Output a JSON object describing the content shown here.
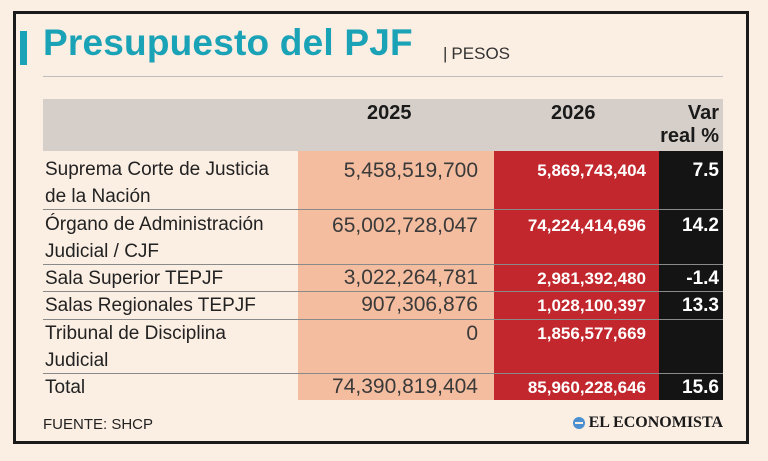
{
  "title": "Presupuesto del PJF",
  "subtitle_separator": "|",
  "subtitle": "PESOS",
  "headers": {
    "year1": "2025",
    "year2": "2026",
    "var_line1": "Var",
    "var_line2": "real %"
  },
  "rows": [
    {
      "label_line1": "Suprema Corte de Justicia",
      "label_line2": "de la Nación",
      "y2025": "5,458,519,700",
      "y2026": "5,869,743,404",
      "var": "7.5"
    },
    {
      "label_line1": "Órgano de Administración",
      "label_line2": "Judicial / CJF",
      "y2025": "65,002,728,047",
      "y2026": "74,224,414,696",
      "var": "14.2"
    },
    {
      "label_line1": "Sala Superior TEPJF",
      "label_line2": "",
      "y2025": "3,022,264,781",
      "y2026": "2,981,392,480",
      "var": "-1.4"
    },
    {
      "label_line1": "Salas Regionales TEPJF",
      "label_line2": "",
      "y2025": "907,306,876",
      "y2026": "1,028,100,397",
      "var": "13.3"
    },
    {
      "label_line1": "Tribunal de Disciplina",
      "label_line2": "Judicial",
      "y2025": "0",
      "y2026": "1,856,577,669",
      "var": ""
    }
  ],
  "total": {
    "label": "Total",
    "y2025": "74,390,819,404",
    "y2026": "85,960,228,646",
    "var": "15.6"
  },
  "source": "FUENTE: SHCP",
  "brand": "EL ECONOMISTA",
  "colors": {
    "accent": "#1aa2b6",
    "col_2025": "#f5bd9f",
    "col_2026": "#c1272d",
    "col_var": "#141414",
    "header_band": "#d6cfc9"
  }
}
